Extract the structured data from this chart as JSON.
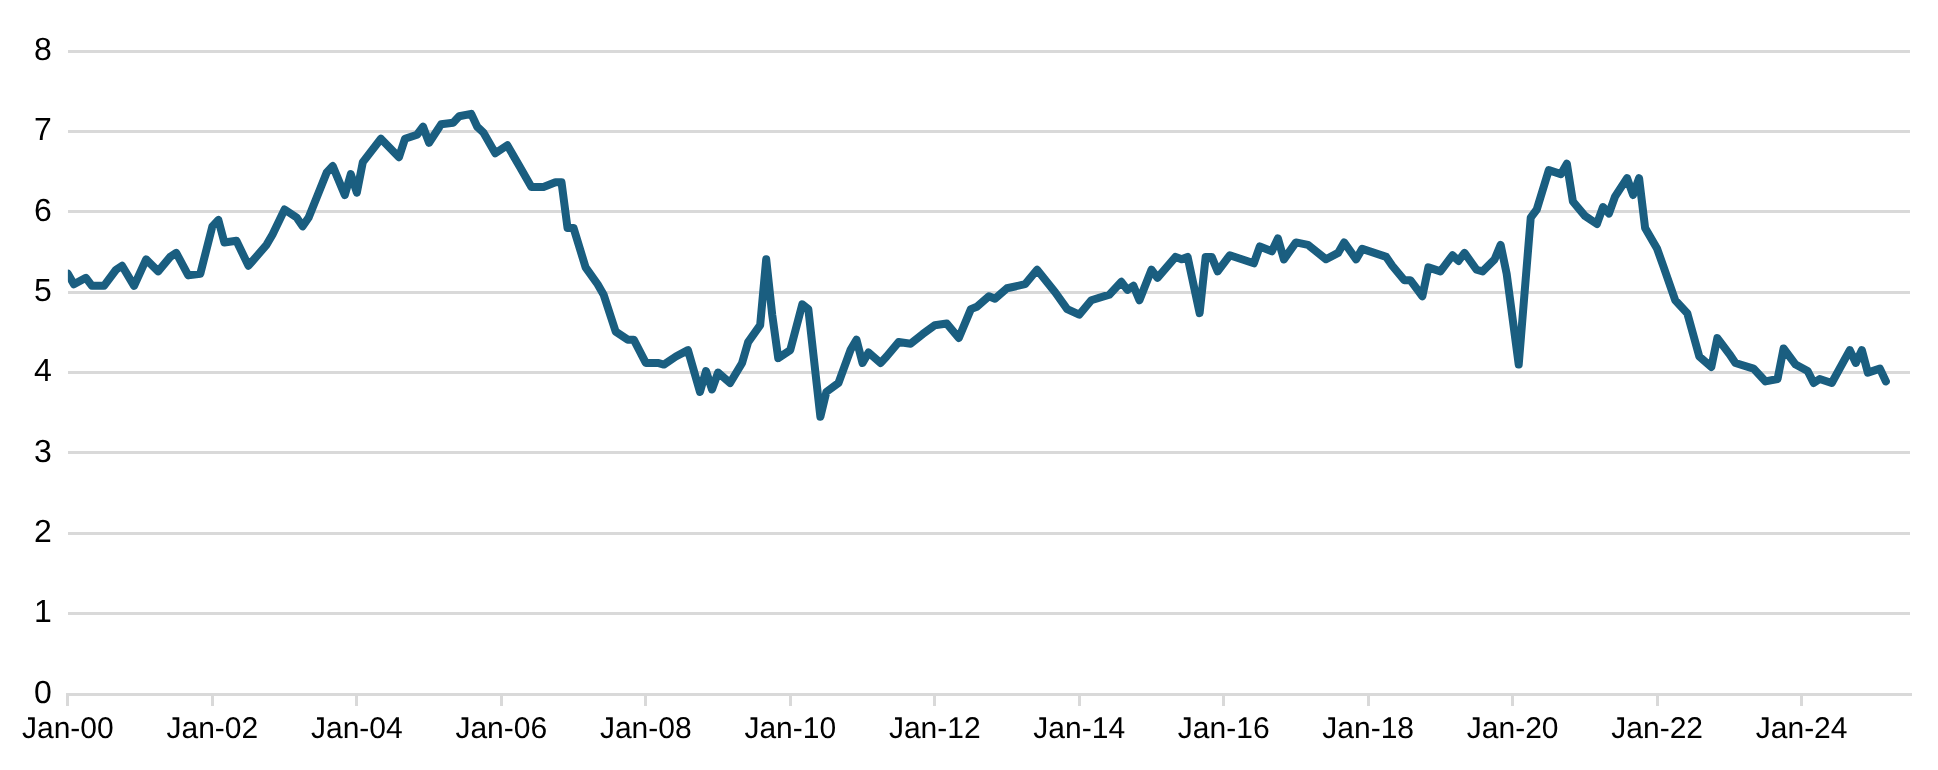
{
  "chart_data": {
    "type": "line",
    "grid": "y",
    "marker": "none",
    "line_style": "solid",
    "legend": false,
    "xlim": [
      "2000-01",
      "2025-07"
    ],
    "xticks": [
      {
        "value": "2000-01",
        "label": "Jan-00"
      },
      {
        "value": "2002-01",
        "label": "Jan-02"
      },
      {
        "value": "2004-01",
        "label": "Jan-04"
      },
      {
        "value": "2006-01",
        "label": "Jan-06"
      },
      {
        "value": "2008-01",
        "label": "Jan-08"
      },
      {
        "value": "2010-01",
        "label": "Jan-10"
      },
      {
        "value": "2012-01",
        "label": "Jan-12"
      },
      {
        "value": "2014-01",
        "label": "Jan-14"
      },
      {
        "value": "2016-01",
        "label": "Jan-16"
      },
      {
        "value": "2018-01",
        "label": "Jan-18"
      },
      {
        "value": "2020-01",
        "label": "Jan-20"
      },
      {
        "value": "2022-01",
        "label": "Jan-22"
      },
      {
        "value": "2024-01",
        "label": "Jan-24"
      }
    ],
    "ylim": [
      0,
      8
    ],
    "yticks": [
      0,
      1,
      2,
      3,
      4,
      5,
      6,
      7,
      8
    ],
    "x": [
      "2000-01",
      "2000-02",
      "2000-04",
      "2000-05",
      "2000-07",
      "2000-09",
      "2000-10",
      "2000-12",
      "2001-02",
      "2001-04",
      "2001-06",
      "2001-07",
      "2001-09",
      "2001-11",
      "2002-01",
      "2002-02",
      "2002-03",
      "2002-05",
      "2002-07",
      "2002-10",
      "2002-11",
      "2003-01",
      "2003-03",
      "2003-04",
      "2003-05",
      "2003-08",
      "2003-09",
      "2003-11",
      "2003-12",
      "2004-01",
      "2004-02",
      "2004-05",
      "2004-08",
      "2004-09",
      "2004-11",
      "2004-12",
      "2005-01",
      "2005-03",
      "2005-05",
      "2005-06",
      "2005-08",
      "2005-09",
      "2005-10",
      "2005-12",
      "2006-02",
      "2006-04",
      "2006-06",
      "2006-08",
      "2006-10",
      "2006-11",
      "2006-12",
      "2007-01",
      "2007-03",
      "2007-05",
      "2007-06",
      "2007-08",
      "2007-10",
      "2007-11",
      "2008-01",
      "2008-03",
      "2008-04",
      "2008-06",
      "2008-08",
      "2008-10",
      "2008-11",
      "2008-12",
      "2009-01",
      "2009-03",
      "2009-05",
      "2009-06",
      "2009-08",
      "2009-09",
      "2009-10",
      "2009-11",
      "2010-01",
      "2010-03",
      "2010-04",
      "2010-06",
      "2010-07",
      "2010-09",
      "2010-11",
      "2010-12",
      "2011-01",
      "2011-02",
      "2011-04",
      "2011-05",
      "2011-07",
      "2011-09",
      "2011-11",
      "2012-01",
      "2012-03",
      "2012-05",
      "2012-07",
      "2012-08",
      "2012-10",
      "2012-11",
      "2013-01",
      "2013-04",
      "2013-06",
      "2013-09",
      "2013-11",
      "2014-01",
      "2014-03",
      "2014-06",
      "2014-08",
      "2014-09",
      "2014-10",
      "2014-11",
      "2015-01",
      "2015-02",
      "2015-05",
      "2015-06",
      "2015-07",
      "2015-09",
      "2015-10",
      "2015-11",
      "2015-12",
      "2016-02",
      "2016-04",
      "2016-06",
      "2016-07",
      "2016-09",
      "2016-10",
      "2016-11",
      "2017-01",
      "2017-03",
      "2017-06",
      "2017-08",
      "2017-09",
      "2017-11",
      "2017-12",
      "2018-04",
      "2018-05",
      "2018-07",
      "2018-08",
      "2018-10",
      "2018-11",
      "2019-01",
      "2019-03",
      "2019-04",
      "2019-05",
      "2019-07",
      "2019-08",
      "2019-10",
      "2019-11",
      "2019-12",
      "2020-02",
      "2020-04",
      "2020-05",
      "2020-07",
      "2020-09",
      "2020-10",
      "2020-11",
      "2021-01",
      "2021-03",
      "2021-04",
      "2021-05",
      "2021-06",
      "2021-08",
      "2021-09",
      "2021-10",
      "2021-11",
      "2022-01",
      "2022-02",
      "2022-04",
      "2022-06",
      "2022-08",
      "2022-10",
      "2022-11",
      "2023-01",
      "2023-02",
      "2023-05",
      "2023-07",
      "2023-09",
      "2023-10",
      "2023-12",
      "2024-02",
      "2024-03",
      "2024-04",
      "2024-06",
      "2024-09",
      "2024-10",
      "2024-11",
      "2024-12",
      "2025-02",
      "2025-03"
    ],
    "series": [
      {
        "color": "#1a5e80",
        "values": [
          5.23,
          5.1,
          5.18,
          5.08,
          5.08,
          5.28,
          5.33,
          5.08,
          5.41,
          5.26,
          5.44,
          5.49,
          5.21,
          5.23,
          5.82,
          5.9,
          5.62,
          5.64,
          5.33,
          5.59,
          5.72,
          6.03,
          5.93,
          5.82,
          5.93,
          6.49,
          6.57,
          6.21,
          6.47,
          6.24,
          6.62,
          6.91,
          6.68,
          6.91,
          6.96,
          7.06,
          6.86,
          7.09,
          7.11,
          7.19,
          7.22,
          7.06,
          6.99,
          6.73,
          6.83,
          6.57,
          6.31,
          6.31,
          6.37,
          6.37,
          5.8,
          5.8,
          5.31,
          5.1,
          4.97,
          4.51,
          4.41,
          4.41,
          4.12,
          4.12,
          4.1,
          4.2,
          4.28,
          3.76,
          4.02,
          3.79,
          4.0,
          3.87,
          4.12,
          4.38,
          4.59,
          5.41,
          4.72,
          4.18,
          4.28,
          4.85,
          4.79,
          3.45,
          3.76,
          3.87,
          4.28,
          4.41,
          4.12,
          4.25,
          4.12,
          4.2,
          4.38,
          4.36,
          4.48,
          4.59,
          4.61,
          4.43,
          4.79,
          4.82,
          4.95,
          4.92,
          5.05,
          5.1,
          5.28,
          5.0,
          4.79,
          4.72,
          4.9,
          4.97,
          5.13,
          5.03,
          5.08,
          4.9,
          5.28,
          5.18,
          5.44,
          5.41,
          5.44,
          4.74,
          5.44,
          5.44,
          5.26,
          5.46,
          5.41,
          5.36,
          5.57,
          5.51,
          5.67,
          5.41,
          5.62,
          5.59,
          5.41,
          5.49,
          5.62,
          5.41,
          5.54,
          5.44,
          5.33,
          5.15,
          5.15,
          4.95,
          5.31,
          5.26,
          5.46,
          5.39,
          5.49,
          5.28,
          5.26,
          5.41,
          5.59,
          5.23,
          4.1,
          5.93,
          6.03,
          6.52,
          6.47,
          6.6,
          6.13,
          5.95,
          5.85,
          6.06,
          5.98,
          6.19,
          6.42,
          6.21,
          6.42,
          5.8,
          5.54,
          5.33,
          4.9,
          4.74,
          4.2,
          4.07,
          4.43,
          4.23,
          4.12,
          4.05,
          3.89,
          3.92,
          4.3,
          4.1,
          4.02,
          3.87,
          3.92,
          3.87,
          4.28,
          4.12,
          4.28,
          4.0,
          4.05,
          3.89
        ]
      }
    ]
  }
}
